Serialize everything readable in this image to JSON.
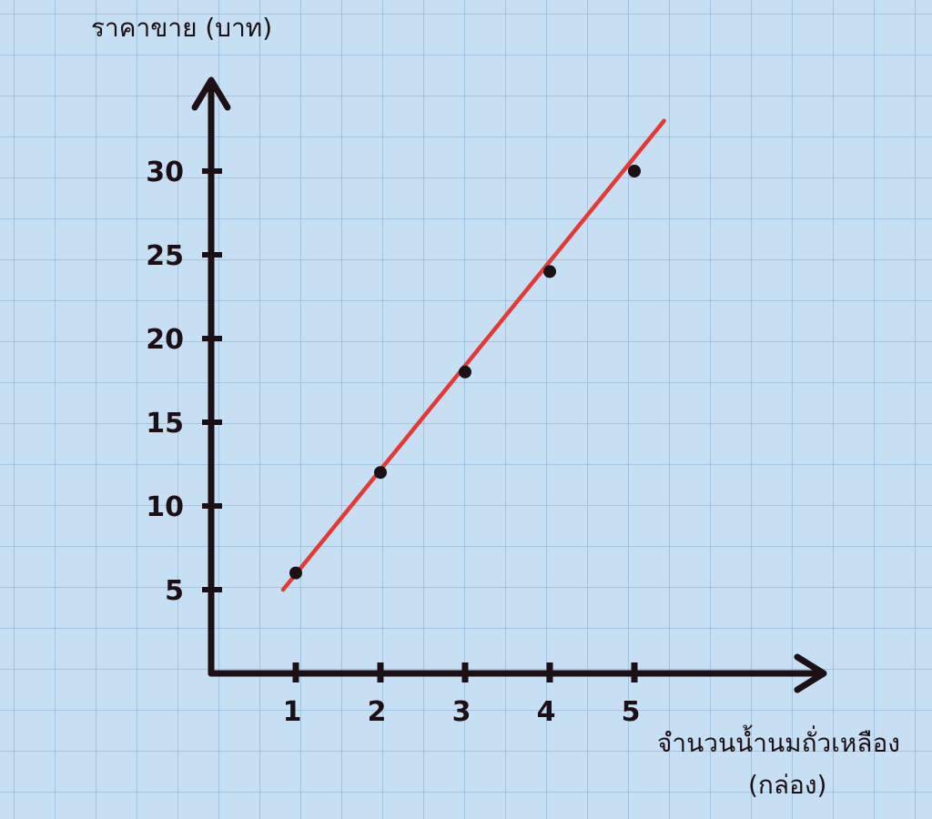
{
  "chart_data": {
    "type": "line",
    "ylabel": "ราคาขาย (บาท)",
    "xlabel_line1": "จำนวนน้ำนมถั่วเหลือง",
    "xlabel_line2": "(กล่อง)",
    "x": [
      1,
      2,
      3,
      4,
      5
    ],
    "y": [
      6,
      12,
      18,
      24,
      30
    ],
    "x_ticks": [
      "1",
      "2",
      "3",
      "4",
      "5"
    ],
    "y_ticks": [
      "5",
      "10",
      "15",
      "20",
      "25",
      "30"
    ],
    "xlim": [
      0,
      6
    ],
    "ylim": [
      0,
      35
    ],
    "trend_line": {
      "from": [
        0.85,
        5
      ],
      "to": [
        5.35,
        33
      ]
    },
    "grid": true,
    "colors": {
      "background": "#c6dff3",
      "grid": "#8fb5d6",
      "axis": "#1c1014",
      "line": "#e53935",
      "points": "#1c1014"
    }
  }
}
